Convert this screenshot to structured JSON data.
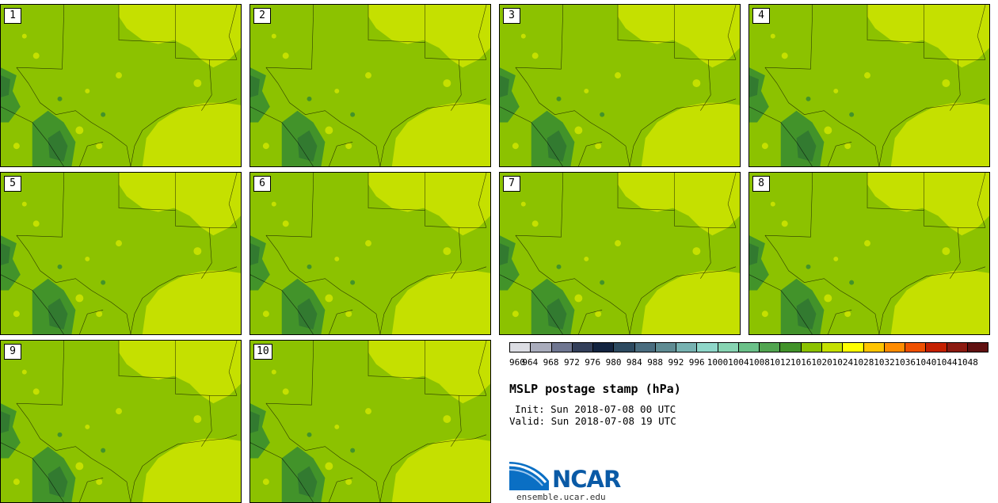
{
  "title": "MSLP postage stamp (hPa)",
  "init_text": "Init: Sun 2018-07-08 00 UTC",
  "valid_text": "Valid: Sun 2018-07-08 19 UTC",
  "logo_text": "NCAR",
  "site": "ensemble.ucar.edu",
  "panels": [
    "1",
    "2",
    "3",
    "4",
    "5",
    "6",
    "7",
    "8",
    "9",
    "10"
  ],
  "colorbar": {
    "ticks": [
      "960",
      "964",
      "968",
      "972",
      "976",
      "980",
      "984",
      "988",
      "992",
      "996",
      "1000",
      "1004",
      "1008",
      "1012",
      "1016",
      "1020",
      "1024",
      "1028",
      "1032",
      "1036",
      "1040",
      "1044",
      "1048"
    ],
    "colors": [
      "#dcdde3",
      "#a9acbc",
      "#6f7691",
      "#333f5a",
      "#132440",
      "#2d4a60",
      "#4a6d7f",
      "#5f8c93",
      "#77b2b1",
      "#8fd7c9",
      "#87d4b2",
      "#6bc189",
      "#52a550",
      "#42932a",
      "#8cc200",
      "#c5e000",
      "#ffff00",
      "#ffc400",
      "#ff8c00",
      "#ef5000",
      "#c42000",
      "#8c1a10",
      "#601010"
    ]
  },
  "colors": {
    "map_base": "#8cc200",
    "map_high": "#c5e000",
    "map_low": "#42932a",
    "map_lower": "#327a30"
  }
}
